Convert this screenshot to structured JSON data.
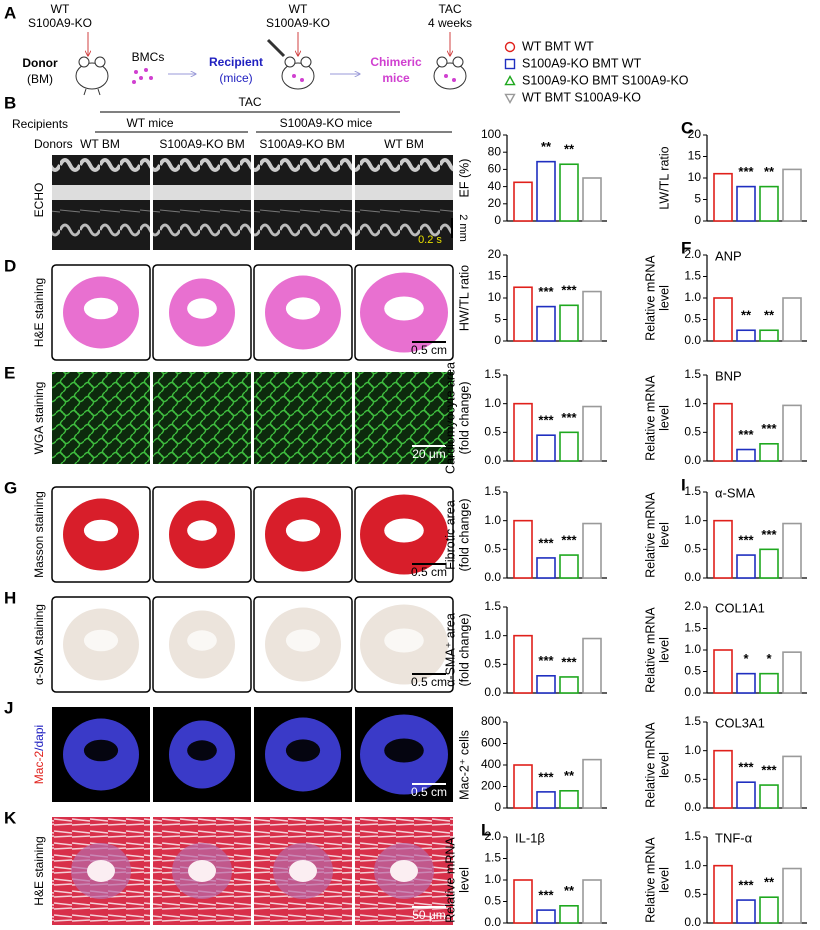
{
  "diagram": {
    "panel": "A",
    "donor_genotype": [
      "WT",
      "S100A9-KO"
    ],
    "donor": "Donor",
    "donor_sub": "(BM)",
    "cells": "BMCs",
    "recipient": "Recipient",
    "recipient_sub": "(mice)",
    "recipient_genotype": [
      "WT",
      "S100A9-KO"
    ],
    "chimeric": "Chimeric",
    "chimeric_sub": "mice",
    "treatment": [
      "TAC",
      "4 weeks"
    ]
  },
  "echo": {
    "panel": "B",
    "treatment": "TAC",
    "recipients_label": "Recipients",
    "recipients": [
      "WT mice",
      "S100A9-KO mice"
    ],
    "donors_label": "Donors",
    "donors": [
      "WT BM",
      "S100A9-KO BM",
      "S100A9-KO BM",
      "WT BM"
    ],
    "row_label": "ECHO",
    "depth_scale": "2 mm",
    "time_scale": "0.2 s"
  },
  "rows": [
    {
      "panel": "D",
      "label": "H&E staining",
      "scale": "0.5 cm"
    },
    {
      "panel": "E",
      "label": "WGA staining",
      "scale": "20 μm"
    },
    {
      "panel": "G",
      "label": "Masson staining",
      "scale": "0.5 cm"
    },
    {
      "panel": "H",
      "label": "α-SMA staining",
      "scale": "0.5 cm"
    },
    {
      "panel": "J",
      "stain": "Mac-2",
      "counterstain": "/dapi",
      "scale": "0.5 cm"
    },
    {
      "panel": "K",
      "label": "H&E staining",
      "scale": "50 μm"
    }
  ],
  "legend": {
    "entries": [
      {
        "name": "WT BMT WT",
        "color": "#e0201b",
        "marker": "circle"
      },
      {
        "name": "S100A9-KO BMT WT",
        "color": "#1f2fc0",
        "marker": "square"
      },
      {
        "name": "S100A9-KO BMT S100A9-KO",
        "color": "#1fa81f",
        "marker": "triangle"
      },
      {
        "name": "WT BMT S100A9-KO",
        "color": "#9a9a9a",
        "marker": "triangle-down"
      }
    ]
  },
  "chart_data": [
    {
      "type": "bar",
      "ylabel": [
        "EF (%)"
      ],
      "values": [
        45,
        69,
        66,
        50
      ],
      "sig_labels": [
        null,
        "**",
        "**",
        null
      ],
      "ylim": [
        0,
        100
      ],
      "yticks": [
        0,
        20,
        40,
        60,
        80,
        100
      ]
    },
    {
      "type": "bar",
      "panel": "C",
      "ylabel": [
        "LW/TL ratio"
      ],
      "values": [
        11,
        8,
        8,
        12
      ],
      "sig_labels": [
        null,
        "***",
        "**",
        null
      ],
      "ylim": [
        0,
        20
      ],
      "yticks": [
        0,
        5,
        10,
        15,
        20
      ]
    },
    {
      "type": "bar",
      "ylabel": [
        "HW/TL ratio"
      ],
      "values": [
        12.5,
        8,
        8.3,
        11.5
      ],
      "sig_labels": [
        null,
        "***",
        "***",
        null
      ],
      "ylim": [
        0,
        20
      ],
      "yticks": [
        0,
        5,
        10,
        15,
        20
      ]
    },
    {
      "type": "bar",
      "panel": "F",
      "title": "ANP",
      "ylabel": [
        "Relative mRNA",
        "level"
      ],
      "values": [
        1.0,
        0.25,
        0.25,
        1.0
      ],
      "sig_labels": [
        null,
        "**",
        "**",
        null
      ],
      "ylim": [
        0,
        2
      ],
      "yticks": [
        {
          "value": 0,
          "label": "0.0"
        },
        0.5,
        {
          "value": 1,
          "label": "1.0"
        },
        1.5,
        {
          "value": 2,
          "label": "2.0"
        }
      ]
    },
    {
      "type": "bar",
      "ylabel": [
        "Cardiomyocyte area",
        "(fold change)"
      ],
      "values": [
        1.0,
        0.45,
        0.5,
        0.95
      ],
      "sig_labels": [
        null,
        "***",
        "***",
        null
      ],
      "ylim": [
        0,
        1.5
      ],
      "yticks": [
        {
          "value": 0,
          "label": "0.0"
        },
        0.5,
        {
          "value": 1,
          "label": "1.0"
        },
        1.5
      ]
    },
    {
      "type": "bar",
      "title": "BNP",
      "ylabel": [
        "Relative mRNA",
        "level"
      ],
      "values": [
        1.0,
        0.2,
        0.3,
        0.97
      ],
      "sig_labels": [
        null,
        "***",
        "***",
        null
      ],
      "ylim": [
        0,
        1.5
      ],
      "yticks": [
        {
          "value": 0,
          "label": "0.0"
        },
        0.5,
        {
          "value": 1,
          "label": "1.0"
        },
        1.5
      ]
    },
    {
      "type": "bar",
      "ylabel": [
        "Fibrotic area",
        "(fold change)"
      ],
      "values": [
        1.0,
        0.35,
        0.4,
        0.95
      ],
      "sig_labels": [
        null,
        "***",
        "***",
        null
      ],
      "ylim": [
        0,
        1.5
      ],
      "yticks": [
        {
          "value": 0,
          "label": "0.0"
        },
        0.5,
        {
          "value": 1,
          "label": "1.0"
        },
        1.5
      ]
    },
    {
      "type": "bar",
      "panel": "I",
      "title": "α-SMA",
      "ylabel": [
        "Relative mRNA",
        "level"
      ],
      "values": [
        1.0,
        0.4,
        0.5,
        0.95
      ],
      "sig_labels": [
        null,
        "***",
        "***",
        null
      ],
      "ylim": [
        0,
        1.5
      ],
      "yticks": [
        {
          "value": 0,
          "label": "0.0"
        },
        0.5,
        {
          "value": 1,
          "label": "1.0"
        },
        1.5
      ]
    },
    {
      "type": "bar",
      "ylabel": [
        "α-SMA⁺ area",
        "(fold change)"
      ],
      "values": [
        1.0,
        0.3,
        0.28,
        0.95
      ],
      "sig_labels": [
        null,
        "***",
        "***",
        null
      ],
      "ylim": [
        0,
        1.5
      ],
      "yticks": [
        {
          "value": 0,
          "label": "0.0"
        },
        0.5,
        {
          "value": 1,
          "label": "1.0"
        },
        1.5
      ]
    },
    {
      "type": "bar",
      "title": "COL1A1",
      "ylabel": [
        "Relative mRNA",
        "level"
      ],
      "values": [
        1.0,
        0.45,
        0.45,
        0.95
      ],
      "sig_labels": [
        null,
        "*",
        "*",
        null
      ],
      "ylim": [
        0,
        2
      ],
      "yticks": [
        {
          "value": 0,
          "label": "0.0"
        },
        0.5,
        {
          "value": 1,
          "label": "1.0"
        },
        1.5,
        {
          "value": 2,
          "label": "2.0"
        }
      ]
    },
    {
      "type": "bar",
      "ylabel": [
        "Mac-2⁺ cells"
      ],
      "values": [
        400,
        150,
        160,
        450
      ],
      "sig_labels": [
        null,
        "***",
        "**",
        null
      ],
      "ylim": [
        0,
        800
      ],
      "yticks": [
        0,
        200,
        400,
        600,
        800
      ]
    },
    {
      "type": "bar",
      "title": "COL3A1",
      "ylabel": [
        "Relative mRNA",
        "level"
      ],
      "values": [
        1.0,
        0.45,
        0.4,
        0.9
      ],
      "sig_labels": [
        null,
        "***",
        "***",
        null
      ],
      "ylim": [
        0,
        1.5
      ],
      "yticks": [
        {
          "value": 0,
          "label": "0.0"
        },
        0.5,
        {
          "value": 1,
          "label": "1.0"
        },
        1.5
      ]
    },
    {
      "type": "bar",
      "panel": "L",
      "title": "IL-1β",
      "ylabel": [
        "Relative mRNA",
        "level"
      ],
      "values": [
        1.0,
        0.3,
        0.4,
        1.0
      ],
      "sig_labels": [
        null,
        "***",
        "**",
        null
      ],
      "ylim": [
        0,
        2
      ],
      "yticks": [
        {
          "value": 0,
          "label": "0.0"
        },
        0.5,
        {
          "value": 1,
          "label": "1.0"
        },
        1.5,
        {
          "value": 2,
          "label": "2.0"
        }
      ]
    },
    {
      "type": "bar",
      "title": "TNF-α",
      "ylabel": [
        "Relative mRNA",
        "level"
      ],
      "values": [
        1.0,
        0.4,
        0.45,
        0.95
      ],
      "sig_labels": [
        null,
        "***",
        "**",
        null
      ],
      "ylim": [
        0,
        1.5
      ],
      "yticks": [
        {
          "value": 0,
          "label": "0.0"
        },
        0.5,
        {
          "value": 1,
          "label": "1.0"
        },
        1.5
      ]
    }
  ]
}
